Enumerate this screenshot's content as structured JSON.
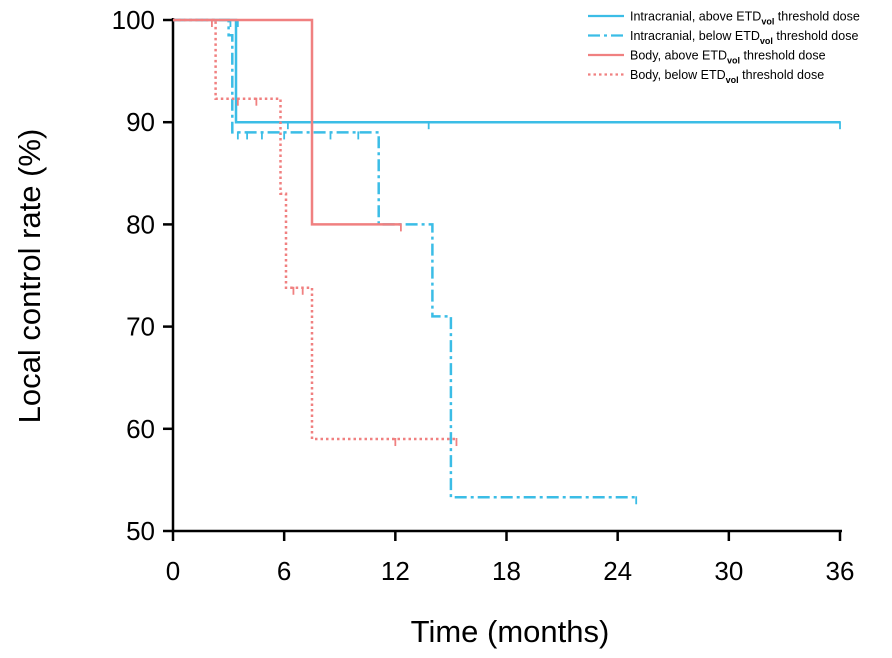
{
  "chart_data": {
    "type": "line",
    "subtype": "kaplan-meier",
    "title": "",
    "xlabel": "Time (months)",
    "ylabel": "Local control rate (%)",
    "xlim": [
      0,
      36
    ],
    "ylim": [
      50,
      100
    ],
    "xticks": [
      "0",
      "6",
      "12",
      "18",
      "24",
      "30",
      "36"
    ],
    "yticks": [
      "50",
      "60",
      "70",
      "80",
      "90",
      "100"
    ],
    "xtick_values": [
      0,
      6,
      12,
      18,
      24,
      30,
      36
    ],
    "ytick_values": [
      50,
      60,
      70,
      80,
      90,
      100
    ],
    "grid": false,
    "legend_position": "top-right",
    "series": [
      {
        "name": "Intracranial, above ETDvol threshold dose",
        "label_pre": "Intracranial, above ETD",
        "label_sub": "vol",
        "label_post": " threshold dose",
        "color": "#3bbde6",
        "style": "solid",
        "steps": [
          [
            0,
            100
          ],
          [
            3.4,
            100
          ],
          [
            3.4,
            90
          ],
          [
            36,
            90
          ]
        ],
        "censored": [
          [
            3.5,
            100
          ],
          [
            6.2,
            90
          ],
          [
            13.8,
            90
          ],
          [
            36,
            90
          ]
        ]
      },
      {
        "name": "Intracranial, below ETDvol threshold dose",
        "label_pre": "Intracranial, below ETD",
        "label_sub": "vol",
        "label_post": " threshold dose",
        "color": "#3bbde6",
        "style": "dashdot",
        "steps": [
          [
            0,
            100
          ],
          [
            3.0,
            100
          ],
          [
            3.0,
            98.5
          ],
          [
            3.2,
            98.5
          ],
          [
            3.2,
            89
          ],
          [
            11.1,
            89
          ],
          [
            11.1,
            80
          ],
          [
            14.0,
            80
          ],
          [
            14.0,
            71
          ],
          [
            15.0,
            71
          ],
          [
            15.0,
            53.3
          ],
          [
            25.0,
            53.3
          ]
        ],
        "censored": [
          [
            3.1,
            100
          ],
          [
            3.5,
            89
          ],
          [
            4.0,
            89
          ],
          [
            4.8,
            89
          ],
          [
            6.0,
            89
          ],
          [
            7.5,
            89
          ],
          [
            8.5,
            89
          ],
          [
            10.0,
            89
          ],
          [
            25.0,
            53.3
          ]
        ]
      },
      {
        "name": "Body, above ETDvol threshold dose",
        "label_pre": "Body, above ETD",
        "label_sub": "vol",
        "label_post": " threshold dose",
        "color": "#f08080",
        "style": "solid",
        "steps": [
          [
            0,
            100
          ],
          [
            7.5,
            100
          ],
          [
            7.5,
            80
          ],
          [
            12.3,
            80
          ]
        ],
        "censored": [
          [
            12.3,
            80
          ]
        ]
      },
      {
        "name": "Body, below ETDvol threshold dose",
        "label_pre": "Body, below ETD",
        "label_sub": "vol",
        "label_post": " threshold dose",
        "color": "#f08080",
        "style": "dotted",
        "steps": [
          [
            0,
            100
          ],
          [
            2.3,
            100
          ],
          [
            2.3,
            92.3
          ],
          [
            5.8,
            92.3
          ],
          [
            5.8,
            83
          ],
          [
            6.1,
            83
          ],
          [
            6.1,
            73.8
          ],
          [
            7.5,
            73.8
          ],
          [
            7.5,
            59
          ],
          [
            15.3,
            59
          ]
        ],
        "censored": [
          [
            2.1,
            100
          ],
          [
            3.5,
            92.3
          ],
          [
            4.5,
            92.3
          ],
          [
            6.5,
            73.8
          ],
          [
            7.0,
            73.8
          ],
          [
            12.0,
            59
          ],
          [
            15.3,
            59
          ]
        ]
      }
    ]
  }
}
